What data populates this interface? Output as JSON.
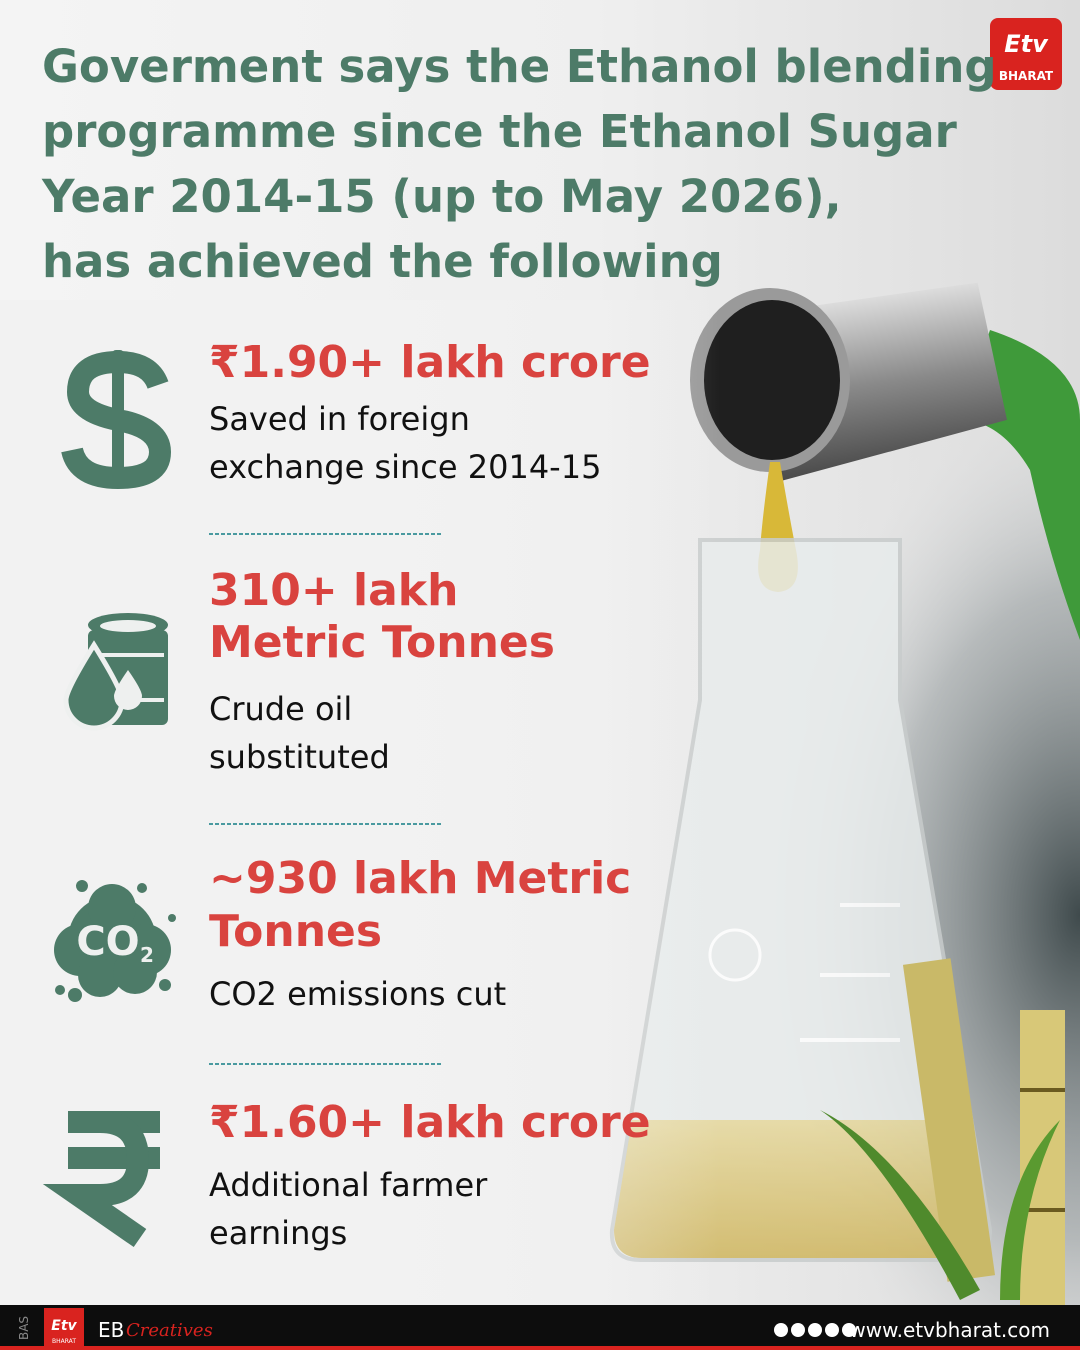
{
  "logo": {
    "mark": "Etv",
    "name": "BHARAT"
  },
  "title_lines": [
    "Goverment says the Ethanol blending",
    "programme since the Ethanol Sugar",
    "Year 2014-15 (up to May 2026),",
    "has achieved the following"
  ],
  "items": [
    {
      "headline": [
        "₹1.90+ lakh crore"
      ],
      "description": [
        "Saved in foreign",
        "exchange since 2014-15"
      ]
    },
    {
      "headline": [
        "310+ lakh",
        "Metric Tonnes"
      ],
      "description": [
        "Crude oil",
        "substituted"
      ]
    },
    {
      "headline": [
        "~930 lakh Metric",
        "Tonnes"
      ],
      "description": [
        "CO2 emissions cut"
      ],
      "icon": {
        "main": "CO",
        "sub": "2"
      }
    },
    {
      "headline": [
        "₹1.60+ lakh crore"
      ],
      "description": [
        "Additional farmer",
        "earnings"
      ]
    }
  ],
  "footer": {
    "side": "BAS",
    "brand": "EB",
    "brand_script": "Creatives",
    "url": "www.etvbharat.com"
  }
}
